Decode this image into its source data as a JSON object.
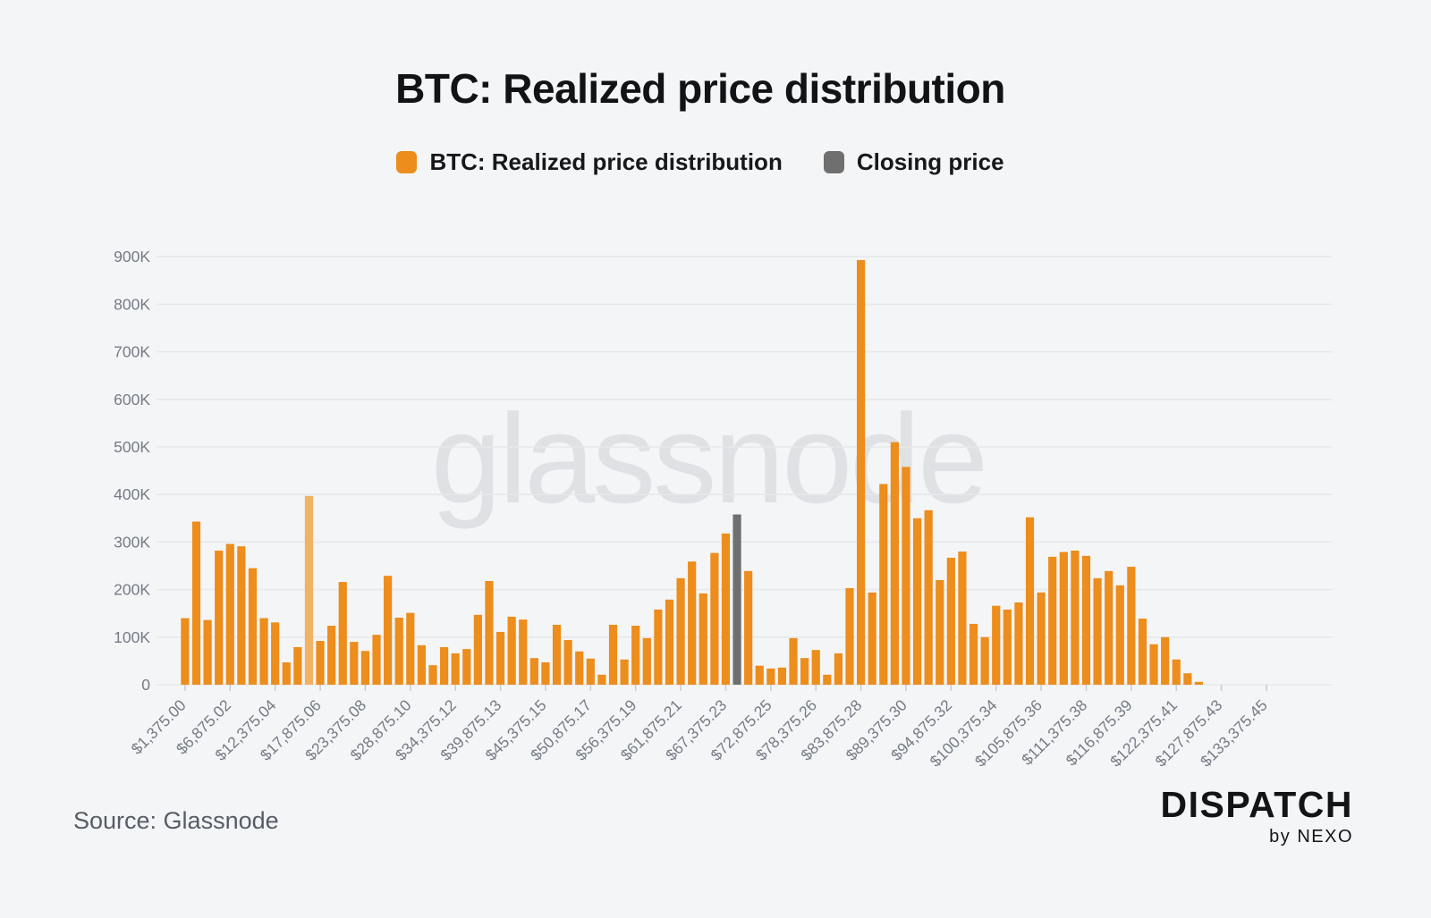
{
  "page": {
    "background": "#F4F5F7"
  },
  "header": {
    "title": "BTC: Realized price distribution"
  },
  "legend": [
    {
      "label": "BTC: Realized price distribution",
      "color": "#EC8D1C"
    },
    {
      "label": "Closing price",
      "color": "#6F6F6F"
    }
  ],
  "footer": {
    "source": "Source: Glassnode",
    "brand": "DISPATCH",
    "brand_sub": "by NEXO"
  },
  "chart_data": {
    "type": "bar",
    "title": "BTC: Realized price distribution",
    "watermark": "glassnode",
    "legend_position": "top",
    "grid": true,
    "y_unit": "K",
    "ylim_k": [
      0,
      900
    ],
    "y_tick_labels": [
      "0",
      "100K",
      "200K",
      "300K",
      "400K",
      "500K",
      "600K",
      "700K",
      "800K",
      "900K"
    ],
    "x_tick_every": 4,
    "x_tick_labels": [
      "$1,375.00",
      "$6,875.02",
      "$12,375.04",
      "$17,875.06",
      "$23,375.08",
      "$28,875.10",
      "$34,375.12",
      "$39,875.13",
      "$45,375.15",
      "$50,875.17",
      "$56,375.19",
      "$61,875.21",
      "$67,375.23",
      "$72,875.25",
      "$78,375.26",
      "$83,875.28",
      "$89,375.30",
      "$94,875.32",
      "$100,375.34",
      "$105,875.36",
      "$111,375.38",
      "$116,875.39",
      "$122,375.41",
      "$127,875.43",
      "$133,375.45"
    ],
    "bar_values_k": [
      140,
      343,
      136,
      282,
      296,
      291,
      245,
      140,
      131,
      47,
      79,
      397,
      92,
      124,
      216,
      90,
      71,
      105,
      229,
      141,
      151,
      83,
      41,
      79,
      66,
      75,
      147,
      218,
      111,
      143,
      137,
      56,
      47,
      126,
      94,
      70,
      55,
      21,
      126,
      53,
      124,
      98,
      158,
      179,
      224,
      259,
      192,
      277,
      318,
      358,
      239,
      40,
      34,
      36,
      98,
      56,
      73,
      21,
      66,
      203,
      893,
      194,
      422,
      510,
      458,
      350,
      367,
      220,
      267,
      280,
      128,
      100,
      166,
      158,
      173,
      352,
      194,
      269,
      279,
      282,
      271,
      224,
      239,
      209,
      248,
      139,
      85,
      100,
      53,
      24,
      6,
      0,
      0,
      0,
      0,
      0,
      0
    ],
    "highlight_bar_index": 11,
    "closing_bar_index": 49,
    "series": [
      {
        "name": "BTC: Realized price distribution",
        "color": "#EC8D1C"
      },
      {
        "name": "Closing price",
        "color": "#6F6F6F"
      }
    ],
    "colors": {
      "bar": "#EC8D1C",
      "bar_highlight": "#F2B263",
      "closing": "#6F6F6F",
      "grid": "#E7E8EA",
      "axis_text": "#757B84",
      "tick_mark": "#C9CCD1",
      "watermark": "#E0E1E4"
    }
  }
}
